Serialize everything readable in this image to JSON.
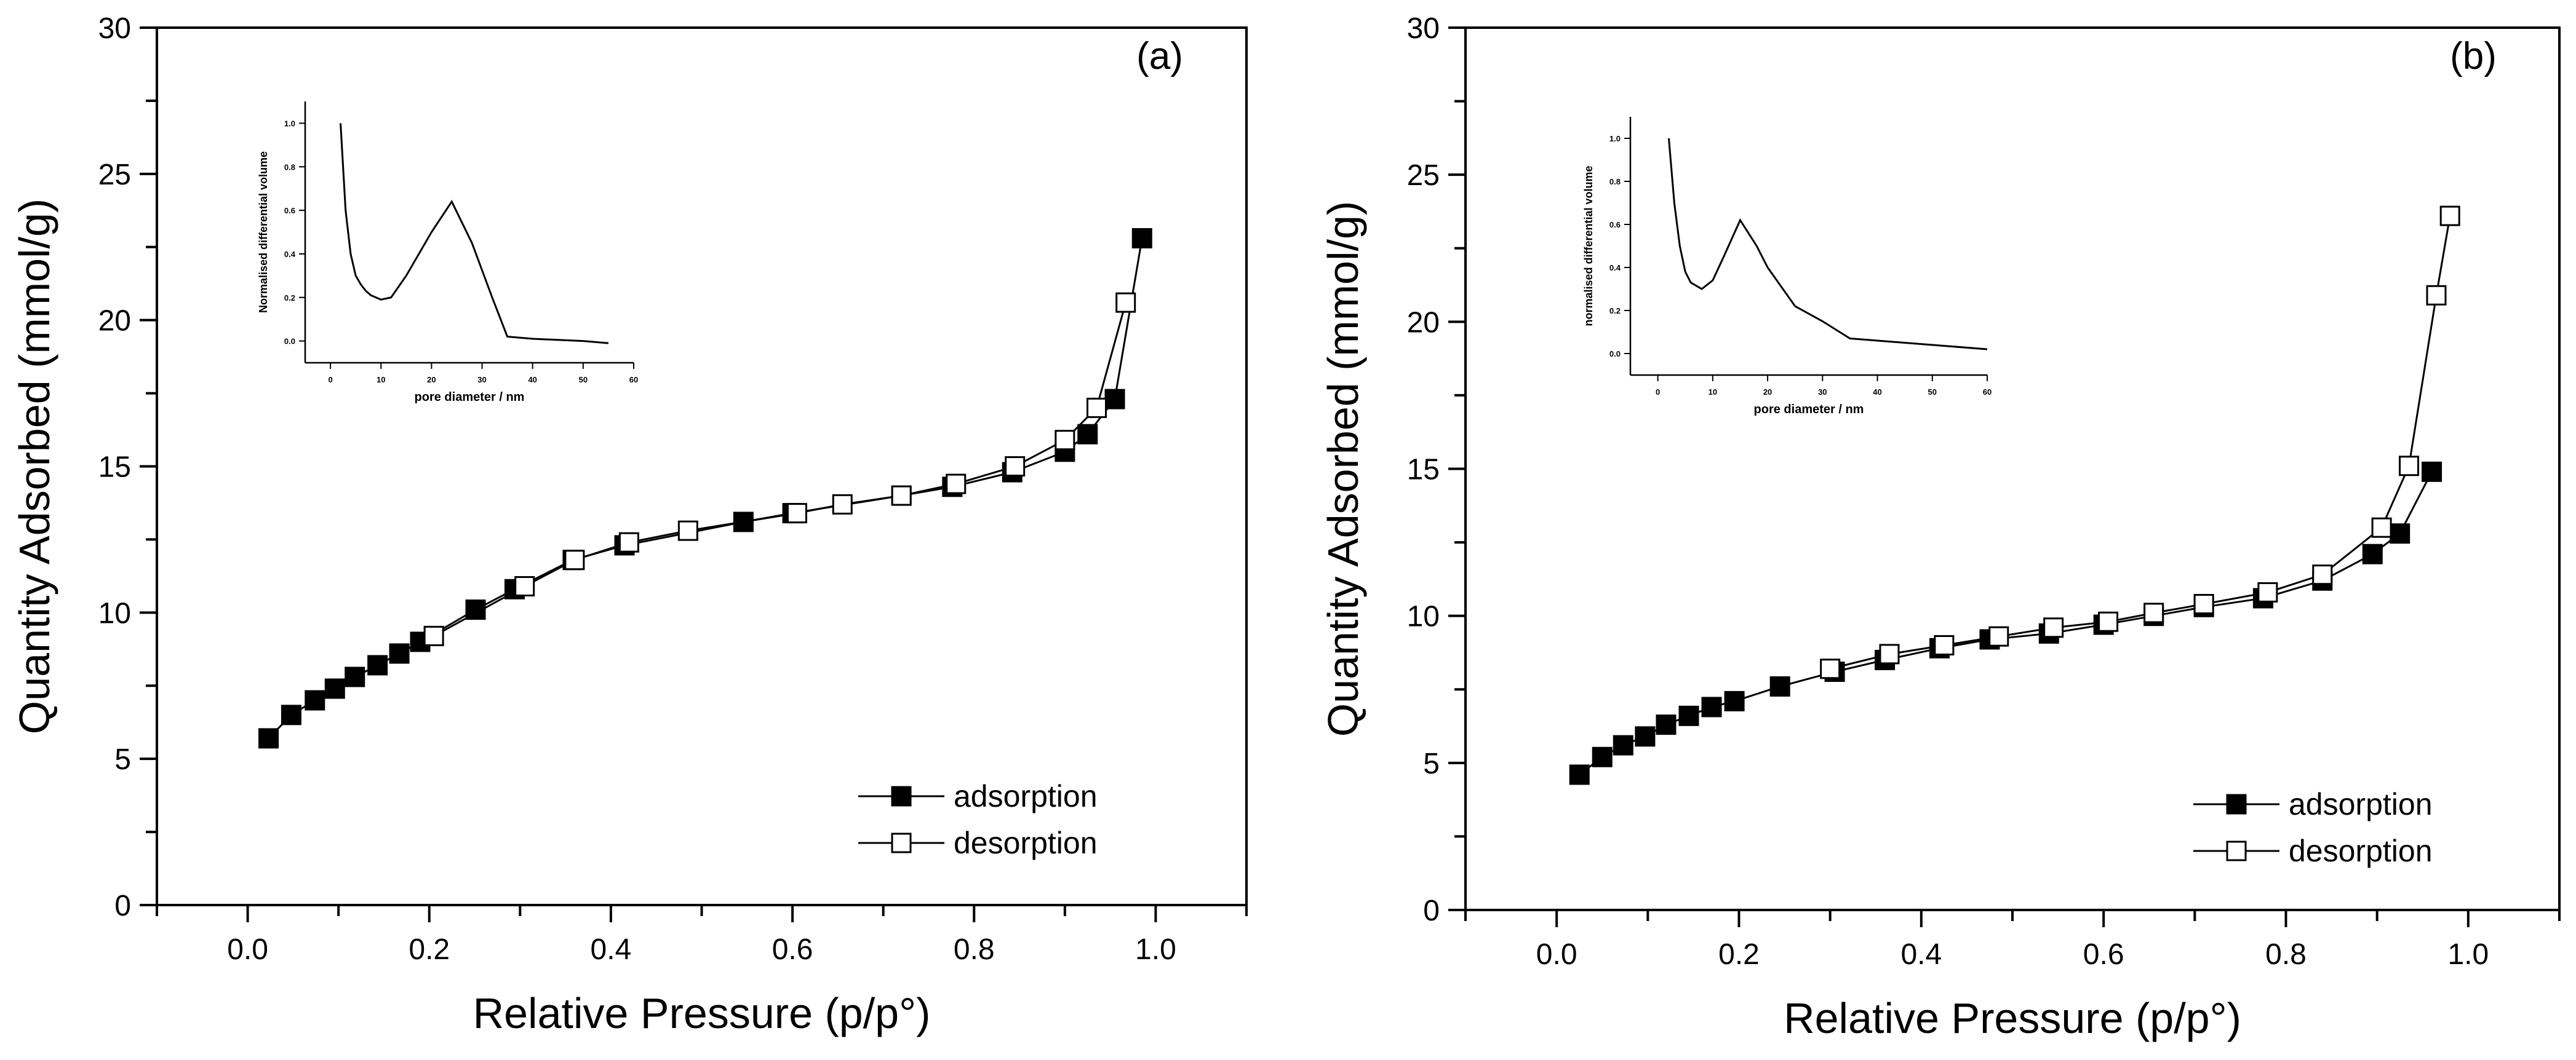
{
  "colors": {
    "ink": "#000000",
    "background": "#ffffff",
    "filled_marker": "#000000",
    "open_marker": "#ffffff"
  },
  "chart_data": [
    {
      "type": "scatter",
      "panel_label": "(a)",
      "title": "",
      "xlabel": "Relative Pressure (p/p°)",
      "ylabel": "Quantity Adsorbed (mmol/g)",
      "xlim": [
        -0.1,
        1.1
      ],
      "ylim": [
        0,
        30
      ],
      "xticks": [
        "0.0",
        "0.2",
        "0.4",
        "0.6",
        "0.8",
        "1.0"
      ],
      "yticks": [
        "0",
        "5",
        "10",
        "15",
        "20",
        "25",
        "30"
      ],
      "legend_position": "bottom-right",
      "series": [
        {
          "name": "adsorption",
          "marker": "filled-square",
          "x": [
            0.023,
            0.048,
            0.074,
            0.096,
            0.118,
            0.143,
            0.167,
            0.19,
            0.251,
            0.294,
            0.358,
            0.415,
            0.546,
            0.6,
            0.72,
            0.776,
            0.842,
            0.9,
            0.925,
            0.955,
            0.985
          ],
          "y": [
            5.7,
            6.5,
            7.0,
            7.4,
            7.8,
            8.2,
            8.6,
            9.0,
            10.1,
            10.8,
            11.8,
            12.3,
            13.1,
            13.4,
            14.0,
            14.3,
            14.8,
            15.5,
            16.1,
            17.3,
            22.8
          ]
        },
        {
          "name": "desorption",
          "marker": "open-square",
          "x": [
            0.967,
            0.935,
            0.9,
            0.845,
            0.78,
            0.72,
            0.655,
            0.605,
            0.485,
            0.42,
            0.36,
            0.305,
            0.205
          ],
          "y": [
            20.6,
            17.0,
            15.9,
            15.0,
            14.4,
            14.0,
            13.7,
            13.4,
            12.8,
            12.4,
            11.8,
            10.9,
            9.2
          ]
        }
      ],
      "inset": {
        "type": "line",
        "xlabel": "pore diameter / nm",
        "ylabel": "Normalised differential volume",
        "xlim": [
          -5,
          60
        ],
        "ylim": [
          -0.1,
          1.1
        ],
        "xticks": [
          "0",
          "10",
          "20",
          "30",
          "40",
          "50",
          "60"
        ],
        "yticks": [
          "0.0",
          "0.2",
          "0.4",
          "0.6",
          "0.8",
          "1.0"
        ],
        "x": [
          2,
          3,
          4,
          5,
          6,
          7,
          8,
          10,
          12,
          15,
          20,
          24,
          28,
          32,
          35,
          40,
          50,
          55
        ],
        "y": [
          1.0,
          0.6,
          0.4,
          0.3,
          0.26,
          0.23,
          0.21,
          0.19,
          0.2,
          0.3,
          0.5,
          0.64,
          0.45,
          0.2,
          0.02,
          0.01,
          0.0,
          -0.01
        ]
      }
    },
    {
      "type": "scatter",
      "panel_label": "(b)",
      "title": "",
      "xlabel": "Relative Pressure (p/p°)",
      "ylabel": "Quantity Adsorbed (mmol/g)",
      "xlim": [
        -0.1,
        1.1
      ],
      "ylim": [
        0,
        30
      ],
      "xticks": [
        "0.0",
        "0.2",
        "0.4",
        "0.6",
        "0.8",
        "1.0"
      ],
      "yticks": [
        "0",
        "5",
        "10",
        "15",
        "20",
        "25",
        "30"
      ],
      "legend_position": "bottom-right",
      "series": [
        {
          "name": "adsorption",
          "marker": "filled-square",
          "x": [
            0.025,
            0.05,
            0.073,
            0.097,
            0.12,
            0.145,
            0.17,
            0.195,
            0.245,
            0.305,
            0.36,
            0.42,
            0.475,
            0.54,
            0.6,
            0.655,
            0.71,
            0.775,
            0.84,
            0.895,
            0.925,
            0.96
          ],
          "y": [
            4.6,
            5.2,
            5.6,
            5.9,
            6.3,
            6.6,
            6.9,
            7.1,
            7.6,
            8.1,
            8.5,
            8.9,
            9.2,
            9.4,
            9.7,
            10.0,
            10.3,
            10.6,
            11.2,
            12.1,
            12.8,
            14.9
          ]
        },
        {
          "name": "desorption",
          "marker": "open-square",
          "x": [
            0.98,
            0.965,
            0.935,
            0.905,
            0.84,
            0.78,
            0.71,
            0.655,
            0.605,
            0.545,
            0.485,
            0.425,
            0.365,
            0.3
          ],
          "y": [
            23.6,
            20.9,
            15.1,
            13.0,
            11.4,
            10.8,
            10.4,
            10.1,
            9.8,
            9.6,
            9.3,
            9.0,
            8.7,
            8.2
          ]
        }
      ],
      "inset": {
        "type": "line",
        "xlabel": "pore diameter / nm",
        "ylabel": "normalised differential volume",
        "xlim": [
          -5,
          60
        ],
        "ylim": [
          -0.1,
          1.1
        ],
        "xticks": [
          "0",
          "10",
          "20",
          "30",
          "40",
          "50",
          "60"
        ],
        "yticks": [
          "0.0",
          "0.2",
          "0.4",
          "0.6",
          "0.8",
          "1.0"
        ],
        "x": [
          2,
          3,
          4,
          5,
          6,
          8,
          10,
          12,
          15,
          18,
          20,
          25,
          30,
          35,
          40,
          50,
          60
        ],
        "y": [
          1.0,
          0.7,
          0.5,
          0.38,
          0.33,
          0.3,
          0.34,
          0.45,
          0.62,
          0.5,
          0.4,
          0.22,
          0.15,
          0.07,
          0.06,
          0.04,
          0.02
        ]
      }
    }
  ]
}
